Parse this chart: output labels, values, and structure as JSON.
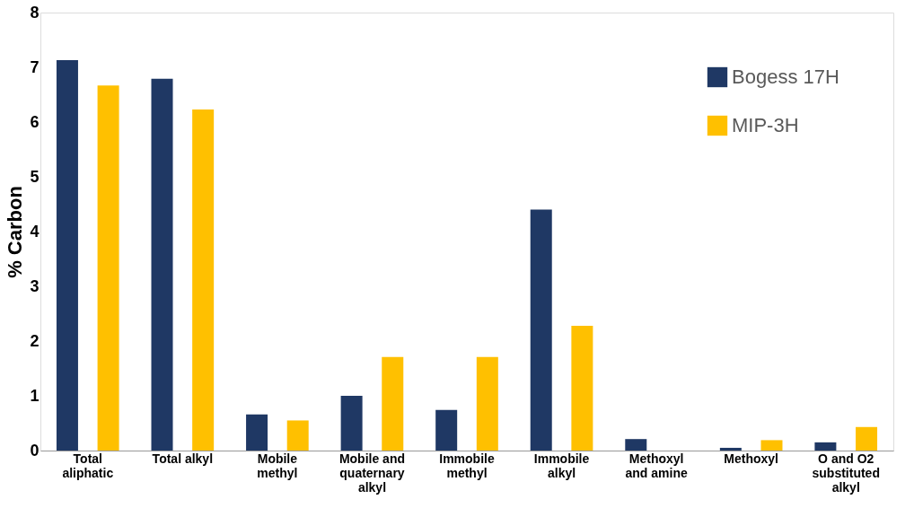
{
  "chart_data": {
    "type": "bar",
    "ylabel": "% Carbon",
    "categories": [
      "Total aliphatic",
      "Total alkyl",
      "Mobile methyl",
      "Mobile and quaternary alkyl",
      "Immobile methyl",
      "Immobile alkyl",
      "Methoxyl and amine",
      "Methoxyl",
      "O and O2 substituted alkyl"
    ],
    "series": [
      {
        "name": "Bogess 17H",
        "color": "#1f3864",
        "values": [
          7.13,
          6.79,
          0.66,
          1.0,
          0.74,
          4.4,
          0.21,
          0.05,
          0.15
        ]
      },
      {
        "name": "MIP-3H",
        "color": "#ffc000",
        "values": [
          6.67,
          6.23,
          0.55,
          1.71,
          1.71,
          2.28,
          0.0,
          0.19,
          0.43
        ]
      }
    ],
    "ylim": [
      0,
      8
    ],
    "yticks": [
      0,
      1,
      2,
      3,
      4,
      5,
      6,
      7,
      8
    ],
    "grid": false,
    "legend": "top right"
  }
}
